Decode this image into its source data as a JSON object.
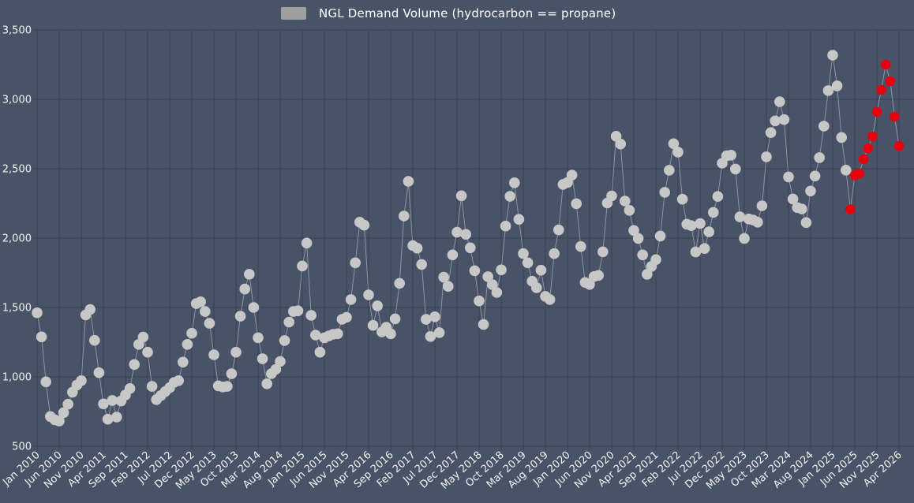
{
  "legend": {
    "label": "NGL Demand Volume (hydrocarbon == propane)",
    "swatch_color": "#9e9e9e"
  },
  "colors": {
    "background": "#495367",
    "grid": "#394252",
    "tick_text": "#f2f2f2",
    "legend_text": "#ffffff",
    "point": "#c7c7c7",
    "forecast_point": "#e8000e",
    "line": "#a9afba"
  },
  "chart_data": {
    "type": "scatter",
    "title": "NGL Demand Volume (hydrocarbon == propane)",
    "x_start": "Jan 2010",
    "x_frequency": "monthly",
    "xtick_every_n_months": 5,
    "xtick_labels": [
      "Jan 2010",
      "Jun 2010",
      "Nov 2010",
      "Apr 2011",
      "Sep 2011",
      "Feb 2012",
      "Jul 2012",
      "Dec 2012",
      "May 2013",
      "Oct 2013",
      "Mar 2014",
      "Aug 2014",
      "Jan 2015",
      "Jun 2015",
      "Nov 2015",
      "Apr 2016",
      "Sep 2016",
      "Feb 2017",
      "Jul 2017",
      "Dec 2017",
      "May 2018",
      "Oct 2018",
      "Mar 2019",
      "Aug 2019",
      "Jan 2020",
      "Jun 2020",
      "Nov 2020",
      "Apr 2021",
      "Sep 2021",
      "Feb 2022",
      "Jul 2022",
      "Dec 2022",
      "May 2023",
      "Oct 2023",
      "Mar 2024",
      "Aug 2024",
      "Jan 2025",
      "Jun 2025",
      "Nov 2025",
      "Apr 2026"
    ],
    "ylim": [
      500,
      3500
    ],
    "ytick_values": [
      3500,
      3000,
      2500,
      2000,
      1500,
      1000,
      500
    ],
    "ytick_labels": [
      "3,500",
      "3,000",
      "2,500",
      "2,000",
      "1,500",
      "1,000",
      "500"
    ],
    "grid": true,
    "legend_position": "top-center",
    "series": [
      {
        "name": "actual",
        "start_month": "Jan 2010",
        "values": [
          1462,
          1288,
          964,
          714,
          691,
          681,
          742,
          803,
          890,
          941,
          973,
          1446,
          1485,
          1263,
          1030,
          805,
          695,
          830,
          710,
          826,
          870,
          916,
          1089,
          1234,
          1287,
          1178,
          931,
          836,
          865,
          894,
          922,
          960,
          973,
          1106,
          1234,
          1314,
          1528,
          1541,
          1471,
          1386,
          1159,
          935,
          927,
          931,
          1022,
          1178,
          1437,
          1633,
          1740,
          1500,
          1282,
          1130,
          950,
          1023,
          1054,
          1111,
          1262,
          1395,
          1471,
          1476,
          1799,
          1964,
          1443,
          1301,
          1178,
          1282,
          1295,
          1307,
          1311,
          1415,
          1429,
          1557,
          1822,
          2115,
          2093,
          1591,
          1371,
          1512,
          1324,
          1358,
          1310,
          1418,
          1674,
          2159,
          2409,
          1946,
          1927,
          1810,
          1414,
          1291,
          1433,
          1319,
          1718,
          1652,
          1879,
          2042,
          2305,
          2027,
          1930,
          1765,
          1547,
          1377,
          1722,
          1665,
          1608,
          1771,
          2087,
          2301,
          2399,
          2135,
          1888,
          1822,
          1689,
          1642,
          1769,
          1580,
          1557,
          1888,
          2059,
          2387,
          2401,
          2454,
          2248,
          1939,
          1680,
          1666,
          1723,
          1731,
          1901,
          2253,
          2304,
          2734,
          2678,
          2267,
          2200,
          2055,
          1998,
          1879,
          1739,
          1796,
          1845,
          2015,
          2330,
          2489,
          2680,
          2620,
          2280,
          2100,
          2090,
          1900,
          2105,
          1925,
          2045,
          2185,
          2300,
          2540,
          2593,
          2598,
          2498,
          2153,
          1998,
          2138,
          2130,
          2115,
          2233,
          2586,
          2760,
          2845,
          2983,
          2854,
          2441,
          2282,
          2220,
          2210,
          2112,
          2339,
          2447,
          2580,
          2807,
          3063,
          3318,
          3097,
          2725,
          2490
        ]
      },
      {
        "name": "forecast",
        "start_month": "May 2025",
        "values": [
          2207,
          2452,
          2465,
          2569,
          2648,
          2733,
          2909,
          3068,
          3250,
          3131,
          2875,
          2665
        ]
      }
    ]
  }
}
